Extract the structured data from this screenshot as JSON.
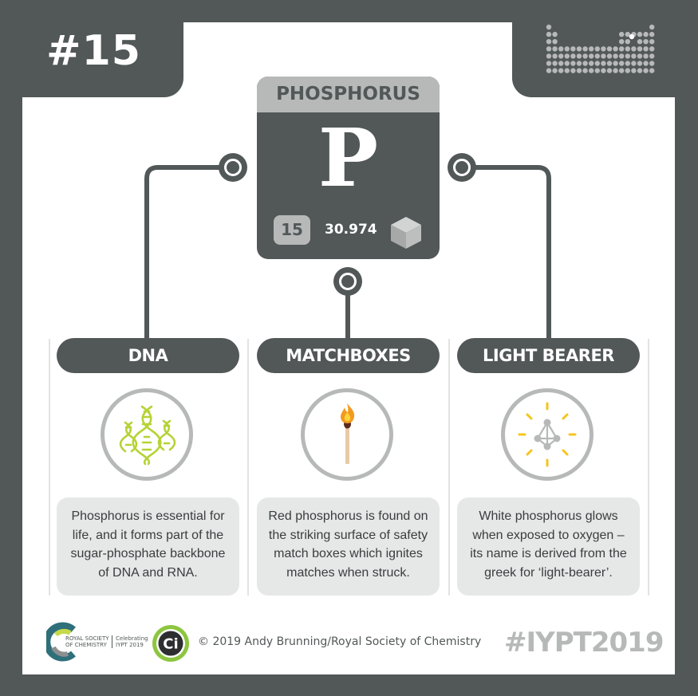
{
  "element": {
    "number_tag": "#15",
    "name": "PHOSPHORUS",
    "symbol": "P",
    "atomic_number": "15",
    "atomic_mass": "30.974"
  },
  "uses": [
    {
      "title": "DNA",
      "icon": "dna-helix-icon",
      "text": "Phosphorus is essential for life, and it forms part of the sugar-phosphate backbone of DNA and RNA."
    },
    {
      "title": "MATCHBOXES",
      "icon": "lit-match-icon",
      "text": "Red phosphorus is found on the striking surface of safety match boxes which ignites matches when struck."
    },
    {
      "title": "LIGHT BEARER",
      "icon": "glowing-molecule-icon",
      "text": "White phosphorus glows when exposed to oxygen – its name is derived from the greek for ‘light-bearer’."
    }
  ],
  "footer": {
    "rsc_name": "ROYAL SOCIETY OF CHEMISTRY",
    "rsc_celebrating": "Celebrating IYPT 2019",
    "ci_logo_text": "Ci",
    "copyright": "© 2019 Andy Brunning/Royal Society of Chemistry",
    "hashtag": "#IYPT2019"
  },
  "colors": {
    "frame": "#525758",
    "light_grey": "#b7b9b9",
    "box_grey": "#e6e7e7",
    "dna_green": "#b5d334",
    "flame_orange": "#f39a1e",
    "glow_yellow": "#f5c51d",
    "ci_green": "#8cc63f"
  }
}
